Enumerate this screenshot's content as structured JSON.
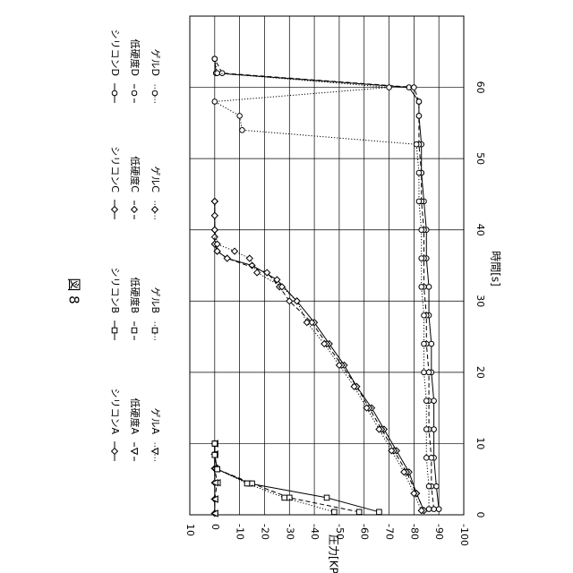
{
  "chart_data": {
    "type": "line",
    "title": "図 8",
    "xlabel": "時間[s]",
    "ylabel": "圧力[KPA]",
    "xlim": [
      0,
      70
    ],
    "ylim": [
      -100,
      10
    ],
    "x_ticks": [
      "0",
      "10",
      "20",
      "30",
      "40",
      "50",
      "60"
    ],
    "y_ticks": [
      "10",
      "0",
      "-10",
      "-20",
      "-30",
      "-40",
      "-50",
      "-60",
      "-70",
      "-80",
      "-90",
      "-100"
    ],
    "grid": true,
    "legend_position": "right (rotated)",
    "series": [
      {
        "name": "シリコンA",
        "marker": "diamond",
        "dash": "solid",
        "x": [
          0.2,
          2.2,
          4.5,
          6.5,
          8.5,
          10
        ],
        "y": [
          0,
          0,
          0,
          0,
          0,
          0
        ]
      },
      {
        "name": "低硬度A",
        "marker": "triangle",
        "dash": "dashed",
        "x": [
          0.2,
          2.2,
          4.5,
          6.5,
          8.5,
          10
        ],
        "y": [
          0,
          0,
          -1,
          0,
          0,
          0
        ]
      },
      {
        "name": "ゲルA",
        "marker": "triangle",
        "dash": "dotted",
        "x": [
          0.2,
          2.2,
          4.5,
          6.5,
          8.5,
          10
        ],
        "y": [
          0,
          0,
          0,
          0,
          0,
          0
        ]
      },
      {
        "name": "シリコンB",
        "marker": "square",
        "dash": "solid",
        "x": [
          0.4,
          2.4,
          4.4,
          6.4,
          8.4,
          10
        ],
        "y": [
          -66,
          -45,
          -14,
          -1,
          0,
          0
        ]
      },
      {
        "name": "低硬度B",
        "marker": "square",
        "dash": "dashed",
        "x": [
          0.4,
          2.4,
          4.4,
          6.4,
          8.4,
          10
        ],
        "y": [
          -58,
          -30,
          -15,
          -1,
          0,
          0
        ]
      },
      {
        "name": "ゲルB",
        "marker": "square",
        "dash": "dotted",
        "x": [
          0.4,
          2.4,
          4.4,
          6.4,
          8.4,
          10
        ],
        "y": [
          -48,
          -28,
          -13,
          -1,
          0,
          0
        ]
      },
      {
        "name": "シリコンC",
        "marker": "diamond",
        "dash": "solid",
        "x": [
          0.6,
          3,
          6,
          9,
          12,
          15,
          18,
          21,
          24,
          27,
          30,
          33,
          35,
          36,
          37,
          38,
          39,
          40,
          42,
          44
        ],
        "y": [
          -84,
          -81,
          -78,
          -73,
          -68,
          -63,
          -57,
          -52,
          -46,
          -40,
          -33,
          -25,
          -15,
          -5,
          -1,
          0,
          0,
          0,
          0,
          0
        ]
      },
      {
        "name": "低硬度C",
        "marker": "diamond",
        "dash": "dashed",
        "x": [
          0.6,
          3,
          6,
          9,
          12,
          15,
          18,
          21,
          24,
          27,
          30,
          32,
          34,
          36,
          37,
          38,
          40,
          42,
          44
        ],
        "y": [
          -84,
          -81,
          -77,
          -72,
          -67,
          -62,
          -57,
          -51,
          -45,
          -39,
          -30,
          -26,
          -21,
          -5,
          -1,
          0,
          0,
          0,
          0
        ]
      },
      {
        "name": "ゲルC",
        "marker": "diamond",
        "dash": "dotted",
        "x": [
          0.6,
          3,
          6,
          9,
          12,
          15,
          18,
          21,
          24,
          27,
          30,
          32,
          34,
          36,
          37,
          38,
          40,
          42,
          44
        ],
        "y": [
          -83,
          -80,
          -76,
          -71,
          -66,
          -61,
          -56,
          -50,
          -44,
          -37,
          -33,
          -27,
          -17,
          -14,
          -8,
          -1,
          0,
          0,
          0
        ]
      },
      {
        "name": "シリコンD",
        "marker": "circle",
        "dash": "solid",
        "x": [
          0.8,
          4,
          8,
          12,
          16,
          20,
          24,
          28,
          32,
          36,
          40,
          44,
          48,
          52,
          56,
          58,
          60,
          62,
          64
        ],
        "y": [
          -90,
          -89,
          -88,
          -88,
          -88,
          -87,
          -87,
          -86,
          -86,
          -85,
          -85,
          -84,
          -83,
          -83,
          -82,
          -82,
          -78,
          -0.5,
          0
        ]
      },
      {
        "name": "低硬度D",
        "marker": "circle",
        "dash": "dashed",
        "x": [
          0.8,
          4,
          8,
          12,
          16,
          20,
          24,
          28,
          32,
          36,
          40,
          44,
          48,
          52,
          56,
          58,
          60,
          62,
          64
        ],
        "y": [
          -88,
          -87,
          -87,
          -86,
          -86,
          -86,
          -85,
          -85,
          -84,
          -84,
          -84,
          -83,
          -83,
          -82,
          -82,
          -82,
          -80,
          -3,
          0
        ]
      },
      {
        "name": "ゲルD",
        "marker": "circle",
        "dash": "dotted",
        "x": [
          0.8,
          4,
          8,
          12,
          16,
          20,
          24,
          28,
          32,
          36,
          40,
          44,
          48,
          52,
          54,
          56,
          58,
          60,
          62,
          64
        ],
        "y": [
          -86,
          -86,
          -85,
          -85,
          -85,
          -84,
          -84,
          -84,
          -83,
          -83,
          -83,
          -82,
          -82,
          -81,
          -11,
          -10,
          0,
          -70,
          -1,
          0
        ]
      }
    ]
  }
}
